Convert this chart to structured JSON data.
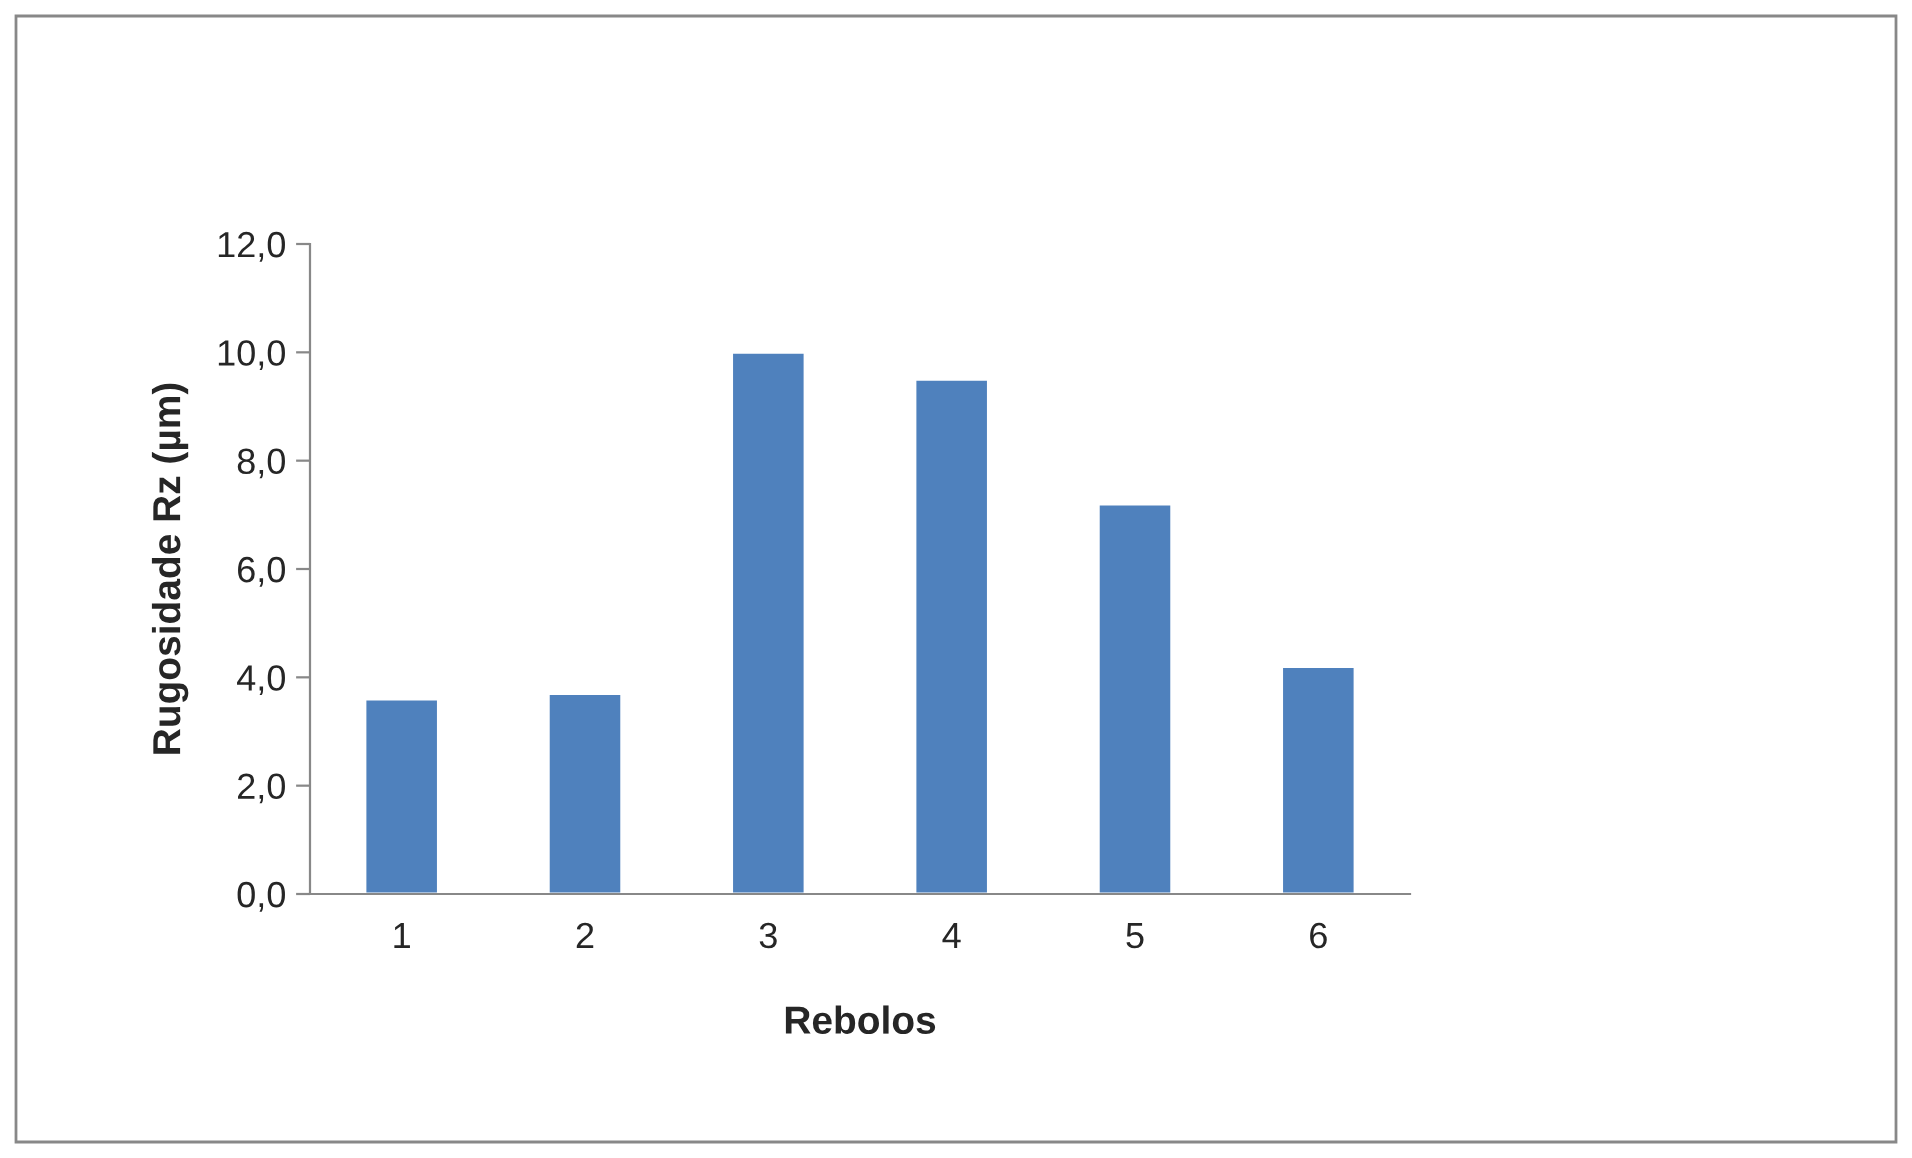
{
  "chart_data": {
    "type": "bar",
    "xlabel": "Rebolos",
    "ylabel": "Rugosidade Rz (µm)",
    "categories": [
      "1",
      "2",
      "3",
      "4",
      "5",
      "6"
    ],
    "values": [
      3.6,
      3.7,
      10.0,
      9.5,
      7.2,
      4.2
    ],
    "color": "#4f81bd",
    "ylim": [
      0,
      12
    ],
    "yticks": [
      {
        "value": 0,
        "label": "0,0"
      },
      {
        "value": 2,
        "label": "2,0"
      },
      {
        "value": 4,
        "label": "4,0"
      },
      {
        "value": 6,
        "label": "6,0"
      },
      {
        "value": 8,
        "label": "8,0"
      },
      {
        "value": 10,
        "label": "10,0"
      },
      {
        "value": 12,
        "label": "12,0"
      }
    ],
    "grid": false,
    "legend": false
  }
}
